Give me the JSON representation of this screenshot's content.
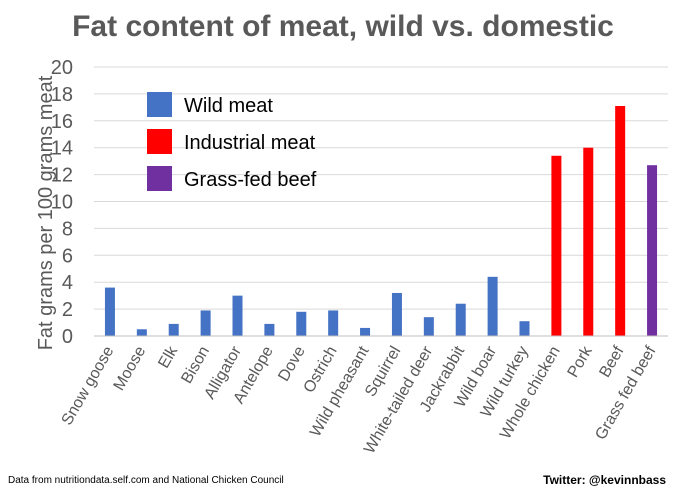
{
  "chart_data": {
    "type": "bar",
    "title": "Fat content of meat, wild vs. domestic",
    "xlabel": "",
    "ylabel": "Fat grams per 100 grams meat",
    "ylim": [
      0,
      20
    ],
    "yticks": [
      "0",
      "2",
      "4",
      "6",
      "8",
      "10",
      "12",
      "14",
      "16",
      "18",
      "20"
    ],
    "grid": true,
    "legend_position": "top-left",
    "legend": [
      {
        "label": "Wild meat",
        "color": "#4472c4"
      },
      {
        "label": "Industrial meat",
        "color": "#ff0000"
      },
      {
        "label": "Grass-fed beef",
        "color": "#7030a0"
      }
    ],
    "bars": [
      {
        "category": "Snow goose",
        "value": 3.6,
        "group": 0
      },
      {
        "category": "Moose",
        "value": 0.5,
        "group": 0
      },
      {
        "category": "Elk",
        "value": 0.9,
        "group": 0
      },
      {
        "category": "Bison",
        "value": 1.9,
        "group": 0
      },
      {
        "category": "Alligator",
        "value": 3.0,
        "group": 0
      },
      {
        "category": "Antelope",
        "value": 0.9,
        "group": 0
      },
      {
        "category": "Dove",
        "value": 1.8,
        "group": 0
      },
      {
        "category": "Ostrich",
        "value": 1.9,
        "group": 0
      },
      {
        "category": "Wild pheasant",
        "value": 0.6,
        "group": 0
      },
      {
        "category": "Squirrel",
        "value": 3.2,
        "group": 0
      },
      {
        "category": "White-tailed deer",
        "value": 1.4,
        "group": 0
      },
      {
        "category": "Jackrabbit",
        "value": 2.4,
        "group": 0
      },
      {
        "category": "Wild boar",
        "value": 4.4,
        "group": 0
      },
      {
        "category": "Wild turkey",
        "value": 1.1,
        "group": 0
      },
      {
        "category": "Whole chicken",
        "value": 13.4,
        "group": 1
      },
      {
        "category": "Pork",
        "value": 14.0,
        "group": 1
      },
      {
        "category": "Beef",
        "value": 17.1,
        "group": 1
      },
      {
        "category": "Grass fed beef",
        "value": 12.7,
        "group": 2
      }
    ]
  },
  "footer": {
    "source": "Data from nutritiondata.self.com and National Chicken Council",
    "credit": "Twitter: @kevinnbass"
  }
}
